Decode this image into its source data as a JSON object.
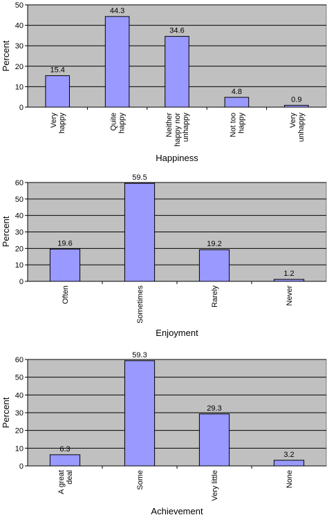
{
  "chart_data": [
    {
      "type": "bar",
      "categories": [
        [
          "Very",
          "happy"
        ],
        [
          "Quite",
          "happy"
        ],
        [
          "Neither",
          "happy nor",
          "unhappy"
        ],
        [
          "Not too",
          "happy"
        ],
        [
          "Very",
          "unhappy"
        ]
      ],
      "values": [
        15.4,
        44.3,
        34.6,
        4.8,
        0.9
      ],
      "data_labels": [
        "15.4",
        "44.3",
        "34.6",
        "4.8",
        "0.9"
      ],
      "xlabel": "Happiness",
      "ylabel": "Percent",
      "ylim": [
        0,
        50
      ],
      "yticks": [
        0,
        10,
        20,
        30,
        40,
        50
      ],
      "grid": true,
      "bar_color": "#9999ff",
      "plot_bg_color": "#c0c0c0"
    },
    {
      "type": "bar",
      "categories": [
        [
          "Often"
        ],
        [
          "Sometimes"
        ],
        [
          "Rarely"
        ],
        [
          "Never"
        ]
      ],
      "values": [
        19.6,
        59.5,
        19.2,
        1.2
      ],
      "data_labels": [
        "19.6",
        "59.5",
        "19.2",
        "1.2"
      ],
      "xlabel": "Enjoyment",
      "ylabel": "Percent",
      "ylim": [
        0,
        60
      ],
      "yticks": [
        0,
        10,
        20,
        30,
        40,
        50,
        60
      ],
      "grid": true,
      "bar_color": "#9999ff",
      "plot_bg_color": "#c0c0c0"
    },
    {
      "type": "bar",
      "categories": [
        [
          "A great",
          "deal"
        ],
        [
          "Some"
        ],
        [
          "Very little"
        ],
        [
          "None"
        ]
      ],
      "values": [
        6.3,
        59.3,
        29.3,
        3.2
      ],
      "data_labels": [
        "6.3",
        "59.3",
        "29.3",
        "3.2"
      ],
      "xlabel": "Achievement",
      "ylabel": "Percent",
      "ylim": [
        0,
        60
      ],
      "yticks": [
        0,
        10,
        20,
        30,
        40,
        50,
        60
      ],
      "grid": true,
      "bar_color": "#9999ff",
      "plot_bg_color": "#c0c0c0"
    }
  ]
}
